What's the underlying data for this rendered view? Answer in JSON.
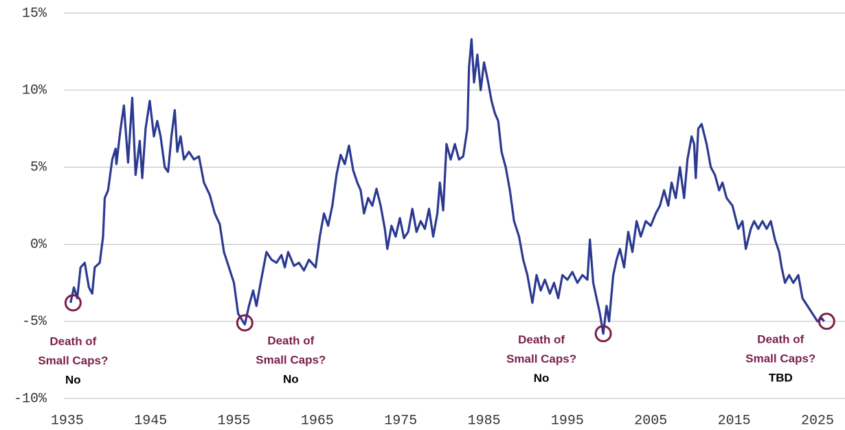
{
  "chart_data": {
    "type": "line",
    "xlim": [
      1934.6,
      2028.3
    ],
    "xticks": [
      1935,
      1945,
      1955,
      1965,
      1975,
      1985,
      1995,
      2005,
      2015,
      2025
    ],
    "ylim": [
      -10,
      15
    ],
    "yticks": [
      {
        "value": -10,
        "label": "-10%"
      },
      {
        "value": -5,
        "label": "-5%"
      },
      {
        "value": 0,
        "label": "0%"
      },
      {
        "value": 5,
        "label": "5%"
      },
      {
        "value": 10,
        "label": "10%"
      },
      {
        "value": 15,
        "label": "15%"
      }
    ],
    "grid": true,
    "series": [
      {
        "color": "#2b3990",
        "x": [
          1935.4,
          1935.8,
          1936.2,
          1936.6,
          1937.1,
          1937.6,
          1938.0,
          1938.3,
          1938.9,
          1939.3,
          1939.5,
          1939.9,
          1940.4,
          1940.8,
          1940.9,
          1941.4,
          1941.8,
          1942.3,
          1942.8,
          1943.2,
          1943.7,
          1944.0,
          1944.4,
          1944.9,
          1945.4,
          1945.8,
          1946.2,
          1946.7,
          1947.1,
          1947.5,
          1947.9,
          1948.2,
          1948.6,
          1949.0,
          1949.6,
          1950.2,
          1950.8,
          1951.4,
          1952.1,
          1952.7,
          1953.3,
          1953.8,
          1954.4,
          1955.0,
          1955.5,
          1956.3,
          1956.8,
          1957.3,
          1957.7,
          1958.2,
          1958.9,
          1959.5,
          1960.1,
          1960.7,
          1961.1,
          1961.5,
          1962.2,
          1962.8,
          1963.4,
          1964.0,
          1964.8,
          1965.3,
          1965.8,
          1966.3,
          1966.8,
          1967.3,
          1967.8,
          1968.3,
          1968.8,
          1969.3,
          1969.8,
          1970.2,
          1970.6,
          1971.1,
          1971.6,
          1972.1,
          1972.6,
          1973.1,
          1973.4,
          1973.9,
          1974.4,
          1974.9,
          1975.4,
          1975.9,
          1976.4,
          1976.9,
          1977.4,
          1977.9,
          1978.4,
          1978.9,
          1979.4,
          1979.7,
          1980.1,
          1980.5,
          1981.0,
          1981.5,
          1982.0,
          1982.5,
          1983.0,
          1983.2,
          1983.5,
          1983.8,
          1984.2,
          1984.6,
          1985.0,
          1985.5,
          1985.9,
          1986.3,
          1986.7,
          1987.1,
          1987.6,
          1988.1,
          1988.6,
          1989.2,
          1989.7,
          1990.2,
          1990.8,
          1991.3,
          1991.8,
          1992.3,
          1992.9,
          1993.4,
          1993.9,
          1994.4,
          1995.0,
          1995.6,
          1996.2,
          1996.8,
          1997.4,
          1997.7,
          1998.1,
          1998.5,
          1998.9,
          1999.3,
          1999.7,
          2000.0,
          2000.5,
          2000.9,
          2001.3,
          2001.8,
          2002.3,
          2002.8,
          2003.3,
          2003.8,
          2004.4,
          2005.0,
          2005.6,
          2006.1,
          2006.6,
          2007.1,
          2007.5,
          2008.0,
          2008.5,
          2009.0,
          2009.4,
          2009.9,
          2010.2,
          2010.4,
          2010.7,
          2011.1,
          2011.7,
          2012.2,
          2012.7,
          2013.2,
          2013.6,
          2014.1,
          2014.8,
          2015.5,
          2016.0,
          2016.4,
          2017.0,
          2017.4,
          2017.9,
          2018.4,
          2018.9,
          2019.4,
          2019.9,
          2020.4,
          2020.7,
          2021.1,
          2021.6,
          2022.1,
          2022.7,
          2023.2,
          2023.8,
          2024.4,
          2025.0,
          2025.5,
          2025.8
        ],
        "values": [
          -3.8,
          -2.8,
          -3.5,
          -1.5,
          -1.2,
          -2.8,
          -3.2,
          -1.5,
          -1.2,
          0.5,
          3.0,
          3.5,
          5.5,
          6.2,
          5.2,
          7.5,
          9.0,
          5.3,
          9.5,
          4.5,
          6.7,
          4.3,
          7.5,
          9.3,
          7.0,
          8.0,
          7.0,
          5.0,
          4.7,
          7.0,
          8.7,
          6.0,
          7.0,
          5.5,
          6.0,
          5.5,
          5.7,
          4.0,
          3.2,
          2.0,
          1.3,
          -0.5,
          -1.5,
          -2.5,
          -4.5,
          -5.2,
          -4.0,
          -3.0,
          -4.0,
          -2.5,
          -0.5,
          -1.0,
          -1.2,
          -0.7,
          -1.5,
          -0.5,
          -1.4,
          -1.2,
          -1.7,
          -1.0,
          -1.5,
          0.5,
          2.0,
          1.2,
          2.5,
          4.5,
          5.8,
          5.2,
          6.4,
          4.8,
          4.0,
          3.5,
          2.0,
          3.0,
          2.5,
          3.6,
          2.5,
          1.0,
          -0.3,
          1.2,
          0.5,
          1.7,
          0.4,
          0.8,
          2.3,
          0.8,
          1.5,
          1.0,
          2.3,
          0.5,
          2.0,
          4.0,
          2.2,
          6.5,
          5.5,
          6.5,
          5.5,
          5.7,
          7.5,
          11.5,
          13.3,
          10.5,
          12.3,
          10.0,
          11.8,
          10.5,
          9.3,
          8.5,
          8.0,
          6.0,
          5.0,
          3.5,
          1.5,
          0.5,
          -1.0,
          -2.0,
          -3.8,
          -2.0,
          -3.0,
          -2.3,
          -3.2,
          -2.5,
          -3.5,
          -2.0,
          -2.3,
          -1.8,
          -2.5,
          -2.0,
          -2.3,
          0.3,
          -2.5,
          -3.5,
          -4.5,
          -5.8,
          -4.0,
          -5.0,
          -2.0,
          -1.0,
          -0.3,
          -1.5,
          0.8,
          -0.5,
          1.5,
          0.5,
          1.5,
          1.2,
          2.0,
          2.5,
          3.5,
          2.5,
          4.0,
          3.0,
          5.0,
          3.0,
          5.5,
          7.0,
          6.5,
          4.3,
          7.5,
          7.8,
          6.5,
          5.0,
          4.5,
          3.5,
          4.0,
          3.0,
          2.5,
          1.0,
          1.5,
          -0.3,
          1.0,
          1.5,
          1.0,
          1.5,
          1.0,
          1.5,
          0.3,
          -0.5,
          -1.5,
          -2.5,
          -2.0,
          -2.5,
          -2.0,
          -3.5,
          -4.0,
          -4.5,
          -5.0,
          -4.8,
          -5.0
        ]
      }
    ],
    "annotations": [
      {
        "x": 1935.7,
        "y": -3.8,
        "lines": [
          "Death of",
          "Small Caps?"
        ],
        "verdict": "No",
        "color": "#7a1f4a",
        "circle_color": "#7a1f4a"
      },
      {
        "x": 1956.3,
        "y": -5.1,
        "lines": [
          "Death of",
          "Small Caps?"
        ],
        "verdict": "No",
        "color": "#7a1f4a",
        "circle_color": "#7a1f4a"
      },
      {
        "x": 1999.3,
        "y": -5.8,
        "lines": [
          "Death of",
          "Small Caps?"
        ],
        "verdict": "No",
        "color": "#7a1f4a",
        "circle_color": "#7a1f4a"
      },
      {
        "x": 2026.1,
        "y": -5.0,
        "lines": [
          "Death of",
          "Small Caps?"
        ],
        "verdict": "TBD",
        "color": "#7a1f4a",
        "circle_color": "#7a1f4a"
      }
    ]
  }
}
